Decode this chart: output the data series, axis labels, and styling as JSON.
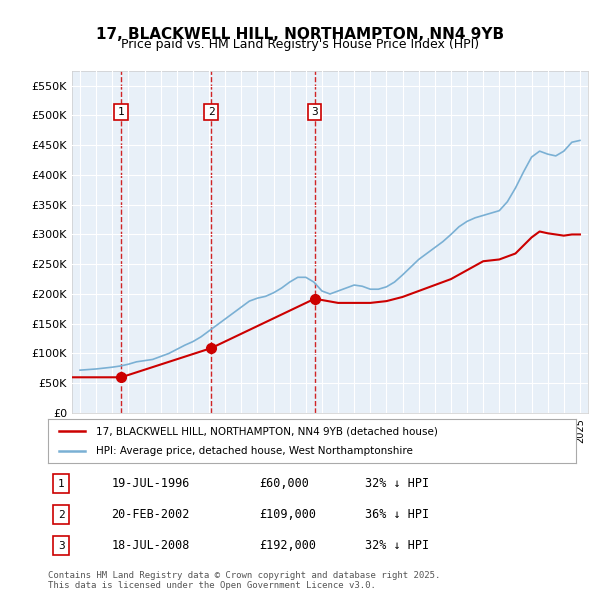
{
  "title": "17, BLACKWELL HILL, NORTHAMPTON, NN4 9YB",
  "subtitle": "Price paid vs. HM Land Registry's House Price Index (HPI)",
  "background_color": "#ffffff",
  "plot_background": "#e8f0f8",
  "grid_color": "#ffffff",
  "ylim": [
    0,
    575000
  ],
  "yticks": [
    0,
    50000,
    100000,
    150000,
    200000,
    250000,
    300000,
    350000,
    400000,
    450000,
    500000,
    550000
  ],
  "ytick_labels": [
    "£0",
    "£50K",
    "£100K",
    "£150K",
    "£200K",
    "£250K",
    "£300K",
    "£350K",
    "£400K",
    "£450K",
    "£500K",
    "£550K"
  ],
  "xlim_start": 1993.5,
  "xlim_end": 2025.5,
  "sale_dates": [
    1996.55,
    2002.13,
    2008.55
  ],
  "sale_prices": [
    60000,
    109000,
    192000
  ],
  "sale_labels": [
    "1",
    "2",
    "3"
  ],
  "sale_label_dates": [
    1996.55,
    2002.13,
    2008.55
  ],
  "vline_color": "#cc0000",
  "vline_style": "dashed",
  "marker_color": "#cc0000",
  "red_line_color": "#cc0000",
  "blue_line_color": "#7ab0d4",
  "legend_entries": [
    "17, BLACKWELL HILL, NORTHAMPTON, NN4 9YB (detached house)",
    "HPI: Average price, detached house, West Northamptonshire"
  ],
  "table_entries": [
    {
      "label": "1",
      "date": "19-JUL-1996",
      "price": "£60,000",
      "hpi": "32% ↓ HPI"
    },
    {
      "label": "2",
      "date": "20-FEB-2002",
      "price": "£109,000",
      "hpi": "36% ↓ HPI"
    },
    {
      "label": "3",
      "date": "18-JUL-2008",
      "price": "£192,000",
      "hpi": "32% ↓ HPI"
    }
  ],
  "footnote": "Contains HM Land Registry data © Crown copyright and database right 2025.\nThis data is licensed under the Open Government Licence v3.0.",
  "hpi_years": [
    1994,
    1994.5,
    1995,
    1995.5,
    1996,
    1996.5,
    1997,
    1997.5,
    1998,
    1998.5,
    1999,
    1999.5,
    2000,
    2000.5,
    2001,
    2001.5,
    2002,
    2002.5,
    2003,
    2003.5,
    2004,
    2004.5,
    2005,
    2005.5,
    2006,
    2006.5,
    2007,
    2007.5,
    2008,
    2008.5,
    2009,
    2009.5,
    2010,
    2010.5,
    2011,
    2011.5,
    2012,
    2012.5,
    2013,
    2013.5,
    2014,
    2014.5,
    2015,
    2015.5,
    2016,
    2016.5,
    2017,
    2017.5,
    2018,
    2018.5,
    2019,
    2019.5,
    2020,
    2020.5,
    2021,
    2021.5,
    2022,
    2022.5,
    2023,
    2023.5,
    2024,
    2024.5,
    2025
  ],
  "hpi_values": [
    72000,
    73000,
    74000,
    75500,
    77000,
    79000,
    82000,
    86000,
    88000,
    90000,
    95000,
    100000,
    107000,
    114000,
    120000,
    128000,
    138000,
    148000,
    158000,
    168000,
    178000,
    188000,
    193000,
    196000,
    202000,
    210000,
    220000,
    228000,
    228000,
    220000,
    205000,
    200000,
    205000,
    210000,
    215000,
    213000,
    208000,
    208000,
    212000,
    220000,
    232000,
    245000,
    258000,
    268000,
    278000,
    288000,
    300000,
    313000,
    322000,
    328000,
    332000,
    336000,
    340000,
    355000,
    378000,
    405000,
    430000,
    440000,
    435000,
    432000,
    440000,
    455000,
    458000
  ],
  "sold_years": [
    1993.5,
    1996.55,
    2002.13,
    2008.55,
    2010,
    2011,
    2012,
    2013,
    2014,
    2015,
    2016,
    2017,
    2018,
    2019,
    2020,
    2021,
    2022,
    2022.5,
    2023,
    2023.5,
    2024,
    2024.5,
    2025
  ],
  "sold_values": [
    60000,
    60000,
    109000,
    192000,
    185000,
    185000,
    185000,
    188000,
    195000,
    205000,
    215000,
    225000,
    240000,
    255000,
    258000,
    268000,
    295000,
    305000,
    302000,
    300000,
    298000,
    300000,
    300000
  ]
}
